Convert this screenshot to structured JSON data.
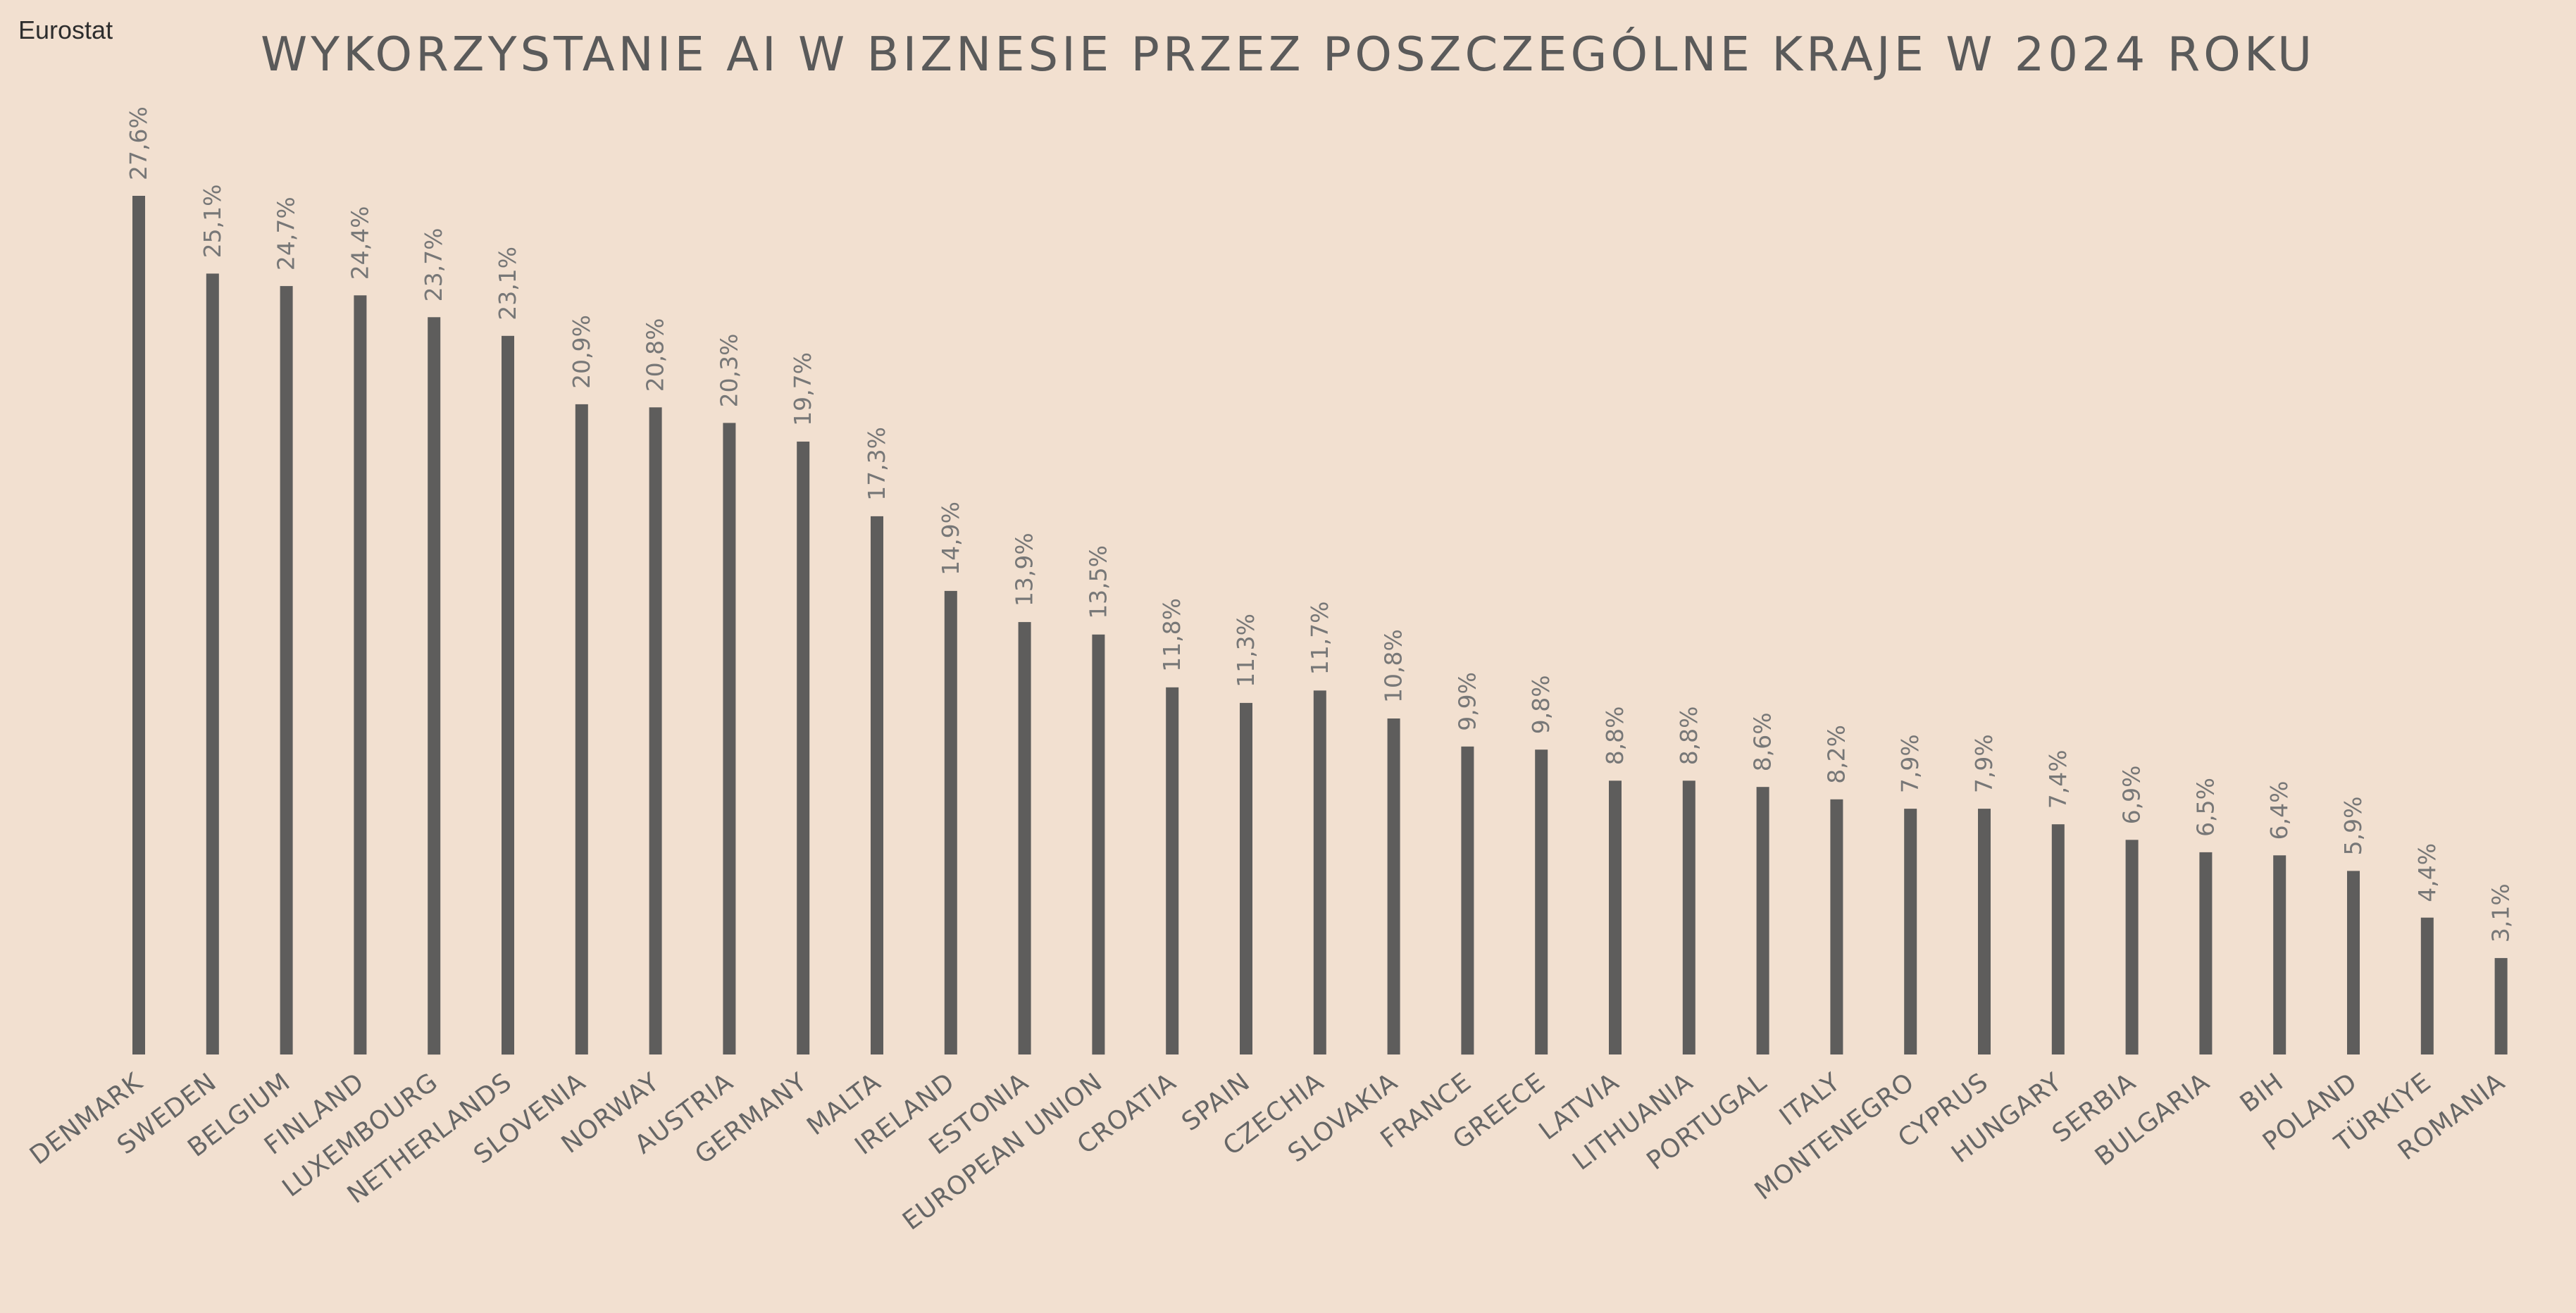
{
  "source": "Eurostat",
  "title": "WYKORZYSTANIE AI W BIZNESIE PRZEZ POSZCZEGÓLNE KRAJE W 2024 ROKU",
  "colors": {
    "background": "#f2e0d0",
    "bar": "#5e5d5c",
    "value_label": "#777777",
    "category_label": "#666666",
    "title": "#5a5a5a"
  },
  "chart_data": {
    "type": "bar",
    "title": "WYKORZYSTANIE AI W BIZNESIE PRZEZ POSZCZEGÓLNE KRAJE W 2024 ROKU",
    "xlabel": "",
    "ylabel": "",
    "ylim": [
      0,
      27.6
    ],
    "grid": false,
    "legend": "none",
    "categories": [
      "DENMARK",
      "SWEDEN",
      "BELGIUM",
      "FINLAND",
      "LUXEMBOURG",
      "NETHERLANDS",
      "SLOVENIA",
      "NORWAY",
      "AUSTRIA",
      "GERMANY",
      "MALTA",
      "IRELAND",
      "ESTONIA",
      "EUROPEAN UNION",
      "CROATIA",
      "SPAIN",
      "CZECHIA",
      "SLOVAKIA",
      "FRANCE",
      "GREECE",
      "LATVIA",
      "LITHUANIA",
      "PORTUGAL",
      "ITALY",
      "MONTENEGRO",
      "CYPRUS",
      "HUNGARY",
      "SERBIA",
      "BULGARIA",
      "BIH",
      "POLAND",
      "TÜRKIYE",
      "ROMANIA"
    ],
    "values": [
      27.6,
      25.1,
      24.7,
      24.4,
      23.7,
      23.1,
      20.9,
      20.8,
      20.3,
      19.7,
      17.3,
      14.9,
      13.9,
      13.5,
      11.8,
      11.3,
      11.7,
      10.8,
      9.9,
      9.8,
      8.8,
      8.8,
      8.6,
      8.2,
      7.9,
      7.9,
      7.4,
      6.9,
      6.5,
      6.4,
      5.9,
      4.4,
      3.1
    ],
    "value_labels": [
      "27,6%",
      "25,1%",
      "24,7%",
      "24,4%",
      "23,7%",
      "23,1%",
      "20,9%",
      "20,8%",
      "20,3%",
      "19,7%",
      "17,3%",
      "14,9%",
      "13,9%",
      "13,5%",
      "11,8%",
      "11,3%",
      "11,7%",
      "10,8%",
      "9,9%",
      "9,8%",
      "8,8%",
      "8,8%",
      "8,6%",
      "8,2%",
      "7,9%",
      "7,9%",
      "7,4%",
      "6,9%",
      "6,5%",
      "6,4%",
      "5,9%",
      "4,4%",
      "3,1%"
    ]
  }
}
